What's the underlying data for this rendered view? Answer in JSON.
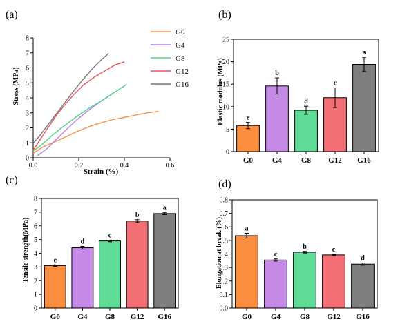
{
  "chart_data": [
    {
      "panel_label": "(a)",
      "type": "line",
      "xlabel": "Strain (%)",
      "ylabel": "Stress (MPa)",
      "xlim": [
        0,
        0.6
      ],
      "ylim": [
        0,
        8
      ],
      "x_ticks": [
        "0.0",
        "0.2",
        "0.4",
        "0.6"
      ],
      "y_ticks": [
        "0",
        "1",
        "2",
        "3",
        "4",
        "5",
        "6",
        "7",
        "8"
      ],
      "legend_position": "top-right",
      "series": [
        {
          "name": "G0",
          "color": "#f5914a",
          "points": [
            [
              0.0,
              0.3
            ],
            [
              0.03,
              0.6
            ],
            [
              0.06,
              0.85
            ],
            [
              0.1,
              1.1
            ],
            [
              0.15,
              1.45
            ],
            [
              0.2,
              1.8
            ],
            [
              0.25,
              2.1
            ],
            [
              0.3,
              2.35
            ],
            [
              0.35,
              2.55
            ],
            [
              0.4,
              2.7
            ],
            [
              0.45,
              2.85
            ],
            [
              0.5,
              3.0
            ],
            [
              0.55,
              3.1
            ]
          ]
        },
        {
          "name": "G4",
          "color": "#b57ee0",
          "points": [
            [
              0.02,
              0.15
            ],
            [
              0.06,
              0.6
            ],
            [
              0.1,
              1.2
            ],
            [
              0.15,
              1.95
            ],
            [
              0.2,
              2.65
            ],
            [
              0.25,
              3.25
            ],
            [
              0.3,
              3.8
            ],
            [
              0.35,
              4.3
            ]
          ]
        },
        {
          "name": "G8",
          "color": "#4fd08a",
          "points": [
            [
              0.0,
              0.45
            ],
            [
              0.04,
              0.9
            ],
            [
              0.08,
              1.45
            ],
            [
              0.12,
              1.95
            ],
            [
              0.16,
              2.4
            ],
            [
              0.2,
              2.85
            ],
            [
              0.25,
              3.35
            ],
            [
              0.3,
              3.8
            ],
            [
              0.35,
              4.3
            ],
            [
              0.39,
              4.7
            ],
            [
              0.41,
              4.9
            ]
          ]
        },
        {
          "name": "G12",
          "color": "#e8555a",
          "points": [
            [
              0.0,
              0.5
            ],
            [
              0.03,
              1.2
            ],
            [
              0.06,
              1.9
            ],
            [
              0.1,
              2.8
            ],
            [
              0.14,
              3.55
            ],
            [
              0.18,
              4.25
            ],
            [
              0.22,
              4.85
            ],
            [
              0.27,
              5.4
            ],
            [
              0.32,
              5.85
            ],
            [
              0.36,
              6.2
            ],
            [
              0.4,
              6.4
            ]
          ]
        },
        {
          "name": "G16",
          "color": "#777777",
          "points": [
            [
              0.0,
              0.95
            ],
            [
              0.03,
              1.5
            ],
            [
              0.06,
              2.1
            ],
            [
              0.1,
              2.9
            ],
            [
              0.14,
              3.7
            ],
            [
              0.18,
              4.5
            ],
            [
              0.22,
              5.25
            ],
            [
              0.26,
              5.95
            ],
            [
              0.3,
              6.55
            ],
            [
              0.33,
              6.95
            ]
          ]
        }
      ]
    },
    {
      "panel_label": "(b)",
      "type": "bar",
      "categories": [
        "G0",
        "G4",
        "G8",
        "G12",
        "G16"
      ],
      "values": [
        5.8,
        14.6,
        9.2,
        12.0,
        19.4
      ],
      "errors": [
        0.7,
        1.8,
        0.9,
        2.2,
        1.6
      ],
      "significance": [
        "e",
        "b",
        "d",
        "c",
        "a"
      ],
      "colors": [
        "#fb8f3f",
        "#c58ae6",
        "#5fdd96",
        "#f47075",
        "#7e7e7e"
      ],
      "ylabel": "Elastic modulus (MPa)",
      "ylim": [
        0,
        25
      ],
      "y_ticks": [
        "0",
        "5",
        "10",
        "15",
        "20",
        "25"
      ]
    },
    {
      "panel_label": "(c)",
      "type": "bar",
      "categories": [
        "G0",
        "G4",
        "G8",
        "G12",
        "G16"
      ],
      "values": [
        3.1,
        4.4,
        4.9,
        6.35,
        6.9
      ],
      "errors": [
        0.05,
        0.1,
        0.06,
        0.1,
        0.08
      ],
      "significance": [
        "e",
        "d",
        "c",
        "b",
        "a"
      ],
      "colors": [
        "#fb8f3f",
        "#c58ae6",
        "#5fdd96",
        "#f47075",
        "#7e7e7e"
      ],
      "ylabel": "Tensile strength(MPa)",
      "ylim": [
        0,
        8
      ],
      "y_ticks": [
        "0",
        "1",
        "2",
        "3",
        "4",
        "5",
        "6",
        "7",
        "8"
      ]
    },
    {
      "panel_label": "(d)",
      "type": "bar",
      "categories": [
        "G0",
        "G4",
        "G8",
        "G12",
        "G16"
      ],
      "values": [
        0.535,
        0.355,
        0.413,
        0.393,
        0.325
      ],
      "errors": [
        0.018,
        0.008,
        0.006,
        0.004,
        0.008
      ],
      "significance": [
        "a",
        "c",
        "b",
        "c",
        "d"
      ],
      "colors": [
        "#fb8f3f",
        "#c58ae6",
        "#5fdd96",
        "#f47075",
        "#7e7e7e"
      ],
      "ylabel": "Elongation at break (%)",
      "ylim": [
        0,
        0.8
      ],
      "y_ticks": [
        "0.0",
        "0.1",
        "0.2",
        "0.3",
        "0.4",
        "0.5",
        "0.6",
        "0.7",
        "0.8"
      ]
    }
  ]
}
